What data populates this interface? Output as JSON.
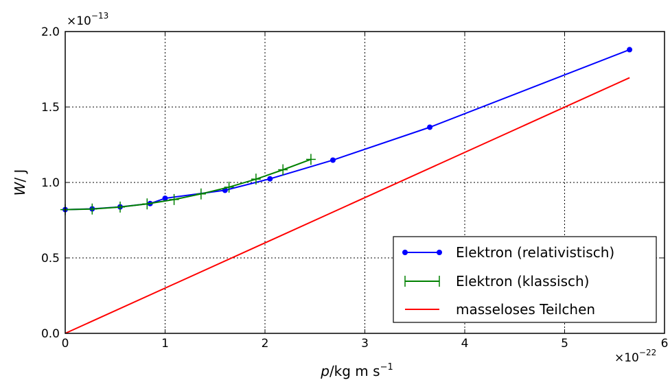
{
  "chart_data": {
    "type": "line",
    "xlabel_var": "p",
    "xlabel_unit": "/kg m s",
    "xlabel_exp": "−1",
    "ylabel_var": "W",
    "ylabel_unit": "/ J",
    "x_scale_base": "×10",
    "x_scale_exp": "−22",
    "y_scale_base": "×10",
    "y_scale_exp": "−13",
    "xlim": [
      0,
      6
    ],
    "ylim": [
      0,
      2.0
    ],
    "xticks": [
      0,
      1,
      2,
      3,
      4,
      5,
      6
    ],
    "xtick_labels": [
      "0",
      "1",
      "2",
      "3",
      "4",
      "5",
      "6"
    ],
    "yticks": [
      0,
      0.5,
      1.0,
      1.5,
      2.0
    ],
    "ytick_labels": [
      "0.0",
      "0.5",
      "1.0",
      "1.5",
      "2.0"
    ],
    "grid": true,
    "legend_position": "bottom-right",
    "series": [
      {
        "name": "Elektron (relativistisch)",
        "color": "#0000ff",
        "marker": "circle",
        "x": [
          0,
          0.27,
          0.55,
          0.85,
          1.0,
          1.6,
          2.05,
          2.68,
          3.65,
          5.65
        ],
        "y": [
          0.82,
          0.825,
          0.838,
          0.86,
          0.895,
          0.948,
          1.024,
          1.148,
          1.366,
          1.88
        ]
      },
      {
        "name": "Elektron (klassisch)",
        "color": "#008000",
        "marker": "plus",
        "x": [
          0,
          0.27,
          0.55,
          0.82,
          1.09,
          1.36,
          1.64,
          1.91,
          2.18,
          2.46
        ],
        "y": [
          0.82,
          0.824,
          0.837,
          0.858,
          0.887,
          0.924,
          0.969,
          1.022,
          1.084,
          1.153
        ]
      },
      {
        "name": "masseloses Teilchen",
        "color": "#ff0000",
        "marker": "none",
        "x": [
          0,
          5.65
        ],
        "y": [
          0,
          1.694
        ]
      }
    ]
  }
}
